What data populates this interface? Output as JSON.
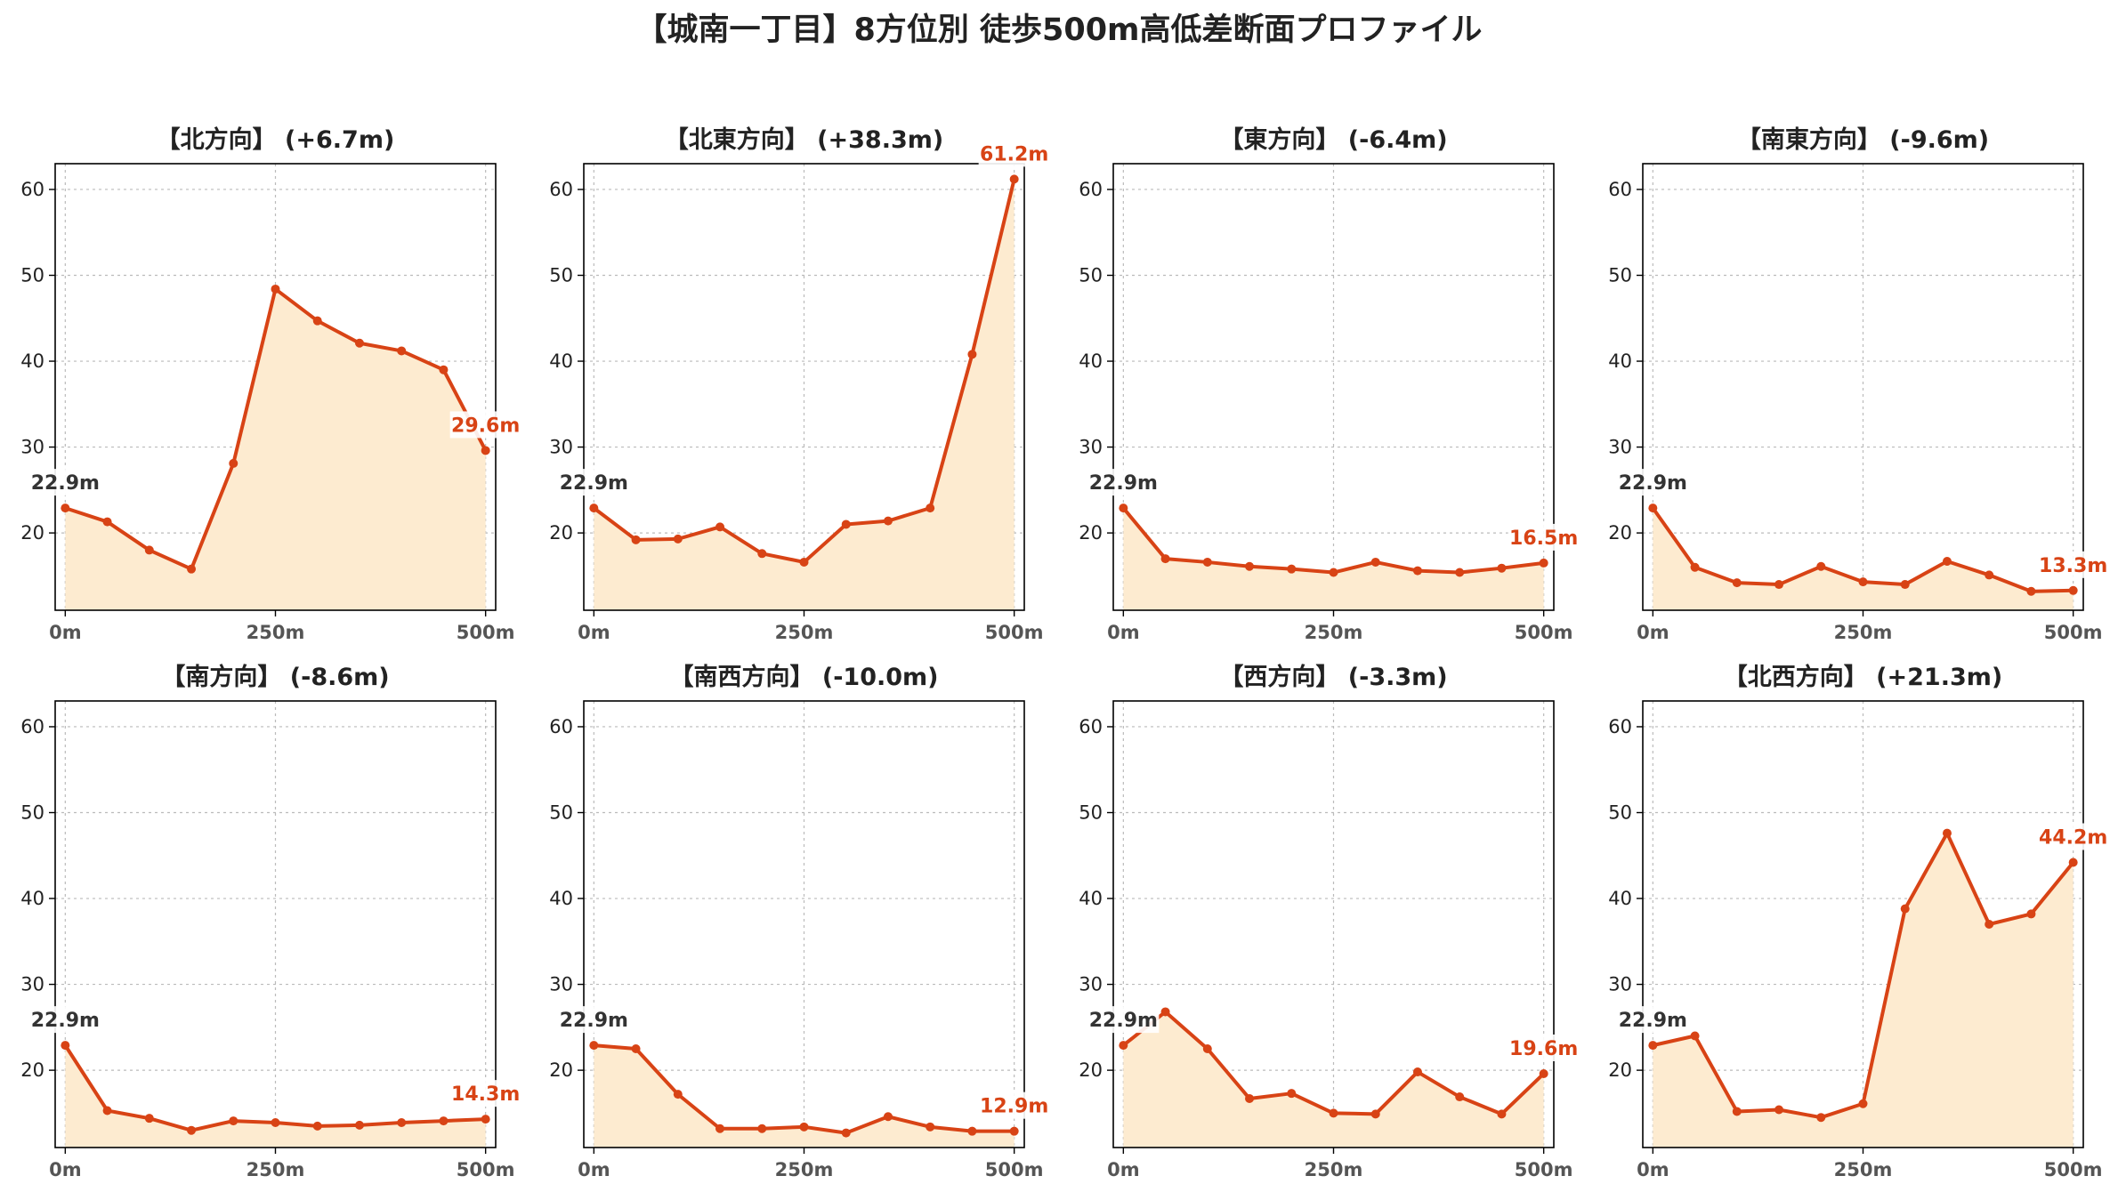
{
  "page_title": "【城南一丁目】8方位別 徒歩500m高低差断面プロファイル",
  "colors": {
    "line": "#d84315",
    "fill": "#fdebd0",
    "start_label": "#333333",
    "end_label": "#d84315",
    "grid": "#bbbbbb",
    "axis": "#000000"
  },
  "chart_data": [
    {
      "type": "area",
      "title": "【北方向】 (+6.7m)",
      "x_tick_labels": [
        "0m",
        "250m",
        "500m"
      ],
      "x_ticks": [
        0,
        250,
        500
      ],
      "y_ticks": [
        20,
        30,
        40,
        50,
        60
      ],
      "y_tick_labels": [
        "20",
        "30",
        "40",
        "50",
        "60"
      ],
      "xlim": [
        -12,
        512
      ],
      "ylim": [
        11,
        63
      ],
      "grid": true,
      "x": [
        0,
        50,
        100,
        150,
        200,
        250,
        300,
        350,
        400,
        450,
        500
      ],
      "y": [
        22.9,
        21.3,
        18.0,
        15.8,
        28.1,
        48.4,
        44.7,
        42.1,
        41.2,
        39.0,
        29.6
      ],
      "start_label": "22.9m",
      "end_label": "29.6m"
    },
    {
      "type": "area",
      "title": "【北東方向】 (+38.3m)",
      "x_tick_labels": [
        "0m",
        "250m",
        "500m"
      ],
      "x_ticks": [
        0,
        250,
        500
      ],
      "y_ticks": [
        20,
        30,
        40,
        50,
        60
      ],
      "y_tick_labels": [
        "20",
        "30",
        "40",
        "50",
        "60"
      ],
      "xlim": [
        -12,
        512
      ],
      "ylim": [
        11,
        63
      ],
      "grid": true,
      "x": [
        0,
        50,
        100,
        150,
        200,
        250,
        300,
        350,
        400,
        450,
        500
      ],
      "y": [
        22.9,
        19.2,
        19.3,
        20.7,
        17.6,
        16.6,
        21.0,
        21.4,
        22.9,
        40.8,
        61.2
      ],
      "start_label": "22.9m",
      "end_label": "61.2m"
    },
    {
      "type": "area",
      "title": "【東方向】 (-6.4m)",
      "x_tick_labels": [
        "0m",
        "250m",
        "500m"
      ],
      "x_ticks": [
        0,
        250,
        500
      ],
      "y_ticks": [
        20,
        30,
        40,
        50,
        60
      ],
      "y_tick_labels": [
        "20",
        "30",
        "40",
        "50",
        "60"
      ],
      "xlim": [
        -12,
        512
      ],
      "ylim": [
        11,
        63
      ],
      "grid": true,
      "x": [
        0,
        50,
        100,
        150,
        200,
        250,
        300,
        350,
        400,
        450,
        500
      ],
      "y": [
        22.9,
        17.0,
        16.6,
        16.1,
        15.8,
        15.4,
        16.6,
        15.6,
        15.4,
        15.9,
        16.5
      ],
      "start_label": "22.9m",
      "end_label": "16.5m"
    },
    {
      "type": "area",
      "title": "【南東方向】 (-9.6m)",
      "x_tick_labels": [
        "0m",
        "250m",
        "500m"
      ],
      "x_ticks": [
        0,
        250,
        500
      ],
      "y_ticks": [
        20,
        30,
        40,
        50,
        60
      ],
      "y_tick_labels": [
        "20",
        "30",
        "40",
        "50",
        "60"
      ],
      "xlim": [
        -12,
        512
      ],
      "ylim": [
        11,
        63
      ],
      "grid": true,
      "x": [
        0,
        50,
        100,
        150,
        200,
        250,
        300,
        350,
        400,
        450,
        500
      ],
      "y": [
        22.9,
        16.0,
        14.2,
        14.0,
        16.1,
        14.3,
        14.0,
        16.7,
        15.1,
        13.2,
        13.3
      ],
      "start_label": "22.9m",
      "end_label": "13.3m"
    },
    {
      "type": "area",
      "title": "【南方向】 (-8.6m)",
      "x_tick_labels": [
        "0m",
        "250m",
        "500m"
      ],
      "x_ticks": [
        0,
        250,
        500
      ],
      "y_ticks": [
        20,
        30,
        40,
        50,
        60
      ],
      "y_tick_labels": [
        "20",
        "30",
        "40",
        "50",
        "60"
      ],
      "xlim": [
        -12,
        512
      ],
      "ylim": [
        11,
        63
      ],
      "grid": true,
      "x": [
        0,
        50,
        100,
        150,
        200,
        250,
        300,
        350,
        400,
        450,
        500
      ],
      "y": [
        22.9,
        15.3,
        14.4,
        13.0,
        14.1,
        13.9,
        13.5,
        13.6,
        13.9,
        14.1,
        14.3
      ],
      "start_label": "22.9m",
      "end_label": "14.3m"
    },
    {
      "type": "area",
      "title": "【南西方向】 (-10.0m)",
      "x_tick_labels": [
        "0m",
        "250m",
        "500m"
      ],
      "x_ticks": [
        0,
        250,
        500
      ],
      "y_ticks": [
        20,
        30,
        40,
        50,
        60
      ],
      "y_tick_labels": [
        "20",
        "30",
        "40",
        "50",
        "60"
      ],
      "xlim": [
        -12,
        512
      ],
      "ylim": [
        11,
        63
      ],
      "grid": true,
      "x": [
        0,
        50,
        100,
        150,
        200,
        250,
        300,
        350,
        400,
        450,
        500
      ],
      "y": [
        22.9,
        22.5,
        17.2,
        13.2,
        13.2,
        13.4,
        12.7,
        14.6,
        13.4,
        12.9,
        12.9
      ],
      "start_label": "22.9m",
      "end_label": "12.9m"
    },
    {
      "type": "area",
      "title": "【西方向】 (-3.3m)",
      "x_tick_labels": [
        "0m",
        "250m",
        "500m"
      ],
      "x_ticks": [
        0,
        250,
        500
      ],
      "y_ticks": [
        20,
        30,
        40,
        50,
        60
      ],
      "y_tick_labels": [
        "20",
        "30",
        "40",
        "50",
        "60"
      ],
      "xlim": [
        -12,
        512
      ],
      "ylim": [
        11,
        63
      ],
      "grid": true,
      "x": [
        0,
        50,
        100,
        150,
        200,
        250,
        300,
        350,
        400,
        450,
        500
      ],
      "y": [
        22.9,
        26.8,
        22.5,
        16.7,
        17.3,
        15.0,
        14.9,
        19.8,
        16.9,
        14.9,
        19.6
      ],
      "start_label": "22.9m",
      "end_label": "19.6m"
    },
    {
      "type": "area",
      "title": "【北西方向】 (+21.3m)",
      "x_tick_labels": [
        "0m",
        "250m",
        "500m"
      ],
      "x_ticks": [
        0,
        250,
        500
      ],
      "y_ticks": [
        20,
        30,
        40,
        50,
        60
      ],
      "y_tick_labels": [
        "20",
        "30",
        "40",
        "50",
        "60"
      ],
      "xlim": [
        -12,
        512
      ],
      "ylim": [
        11,
        63
      ],
      "grid": true,
      "x": [
        0,
        50,
        100,
        150,
        200,
        250,
        300,
        350,
        400,
        450,
        500
      ],
      "y": [
        22.9,
        24.0,
        15.2,
        15.4,
        14.5,
        16.1,
        38.8,
        47.6,
        37.0,
        38.2,
        44.2
      ],
      "start_label": "22.9m",
      "end_label": "44.2m"
    }
  ]
}
